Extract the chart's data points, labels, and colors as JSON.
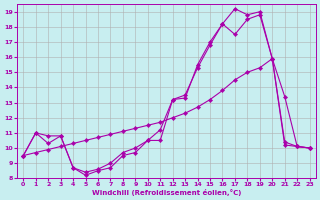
{
  "xlabel": "Windchill (Refroidissement éolien,°C)",
  "bg_color": "#c8eef0",
  "line_color": "#aa00aa",
  "grid_color": "#b0b0b0",
  "xlim": [
    -0.5,
    23.5
  ],
  "ylim": [
    8,
    19.5
  ],
  "xticks": [
    0,
    1,
    2,
    3,
    4,
    5,
    6,
    7,
    8,
    9,
    10,
    11,
    12,
    13,
    14,
    15,
    16,
    17,
    18,
    19,
    20,
    21,
    22,
    23
  ],
  "yticks": [
    8,
    9,
    10,
    11,
    12,
    13,
    14,
    15,
    16,
    17,
    18,
    19
  ],
  "line1_x": [
    0,
    1,
    2,
    3,
    4,
    5,
    6,
    7,
    8,
    9,
    10,
    11,
    12,
    13,
    14,
    15,
    16,
    17,
    18,
    19,
    20,
    21,
    22,
    23
  ],
  "line1_y": [
    9.5,
    11.0,
    10.3,
    10.8,
    8.7,
    8.2,
    8.5,
    8.7,
    9.5,
    9.7,
    10.5,
    10.5,
    13.2,
    13.3,
    15.5,
    17.0,
    18.2,
    19.2,
    18.8,
    19.0,
    15.9,
    10.4,
    10.1,
    10.0
  ],
  "line2_x": [
    0,
    1,
    2,
    3,
    4,
    5,
    6,
    7,
    8,
    9,
    10,
    11,
    12,
    13,
    14,
    15,
    16,
    17,
    18,
    19,
    20,
    21,
    22,
    23
  ],
  "line2_y": [
    9.5,
    11.0,
    10.8,
    10.8,
    8.7,
    8.4,
    8.6,
    9.0,
    9.7,
    10.0,
    10.5,
    11.2,
    13.2,
    13.5,
    15.3,
    16.8,
    18.2,
    17.5,
    18.5,
    18.8,
    15.9,
    13.4,
    10.1,
    10.0
  ],
  "line3_x": [
    0,
    1,
    2,
    3,
    4,
    5,
    6,
    7,
    8,
    9,
    10,
    11,
    12,
    13,
    14,
    15,
    16,
    17,
    18,
    19,
    20,
    21,
    22,
    23
  ],
  "line3_y": [
    9.5,
    9.7,
    9.9,
    10.1,
    10.3,
    10.5,
    10.7,
    10.9,
    11.1,
    11.3,
    11.5,
    11.7,
    12.0,
    12.3,
    12.7,
    13.2,
    13.8,
    14.5,
    15.0,
    15.3,
    15.9,
    10.2,
    10.1,
    10.0
  ]
}
